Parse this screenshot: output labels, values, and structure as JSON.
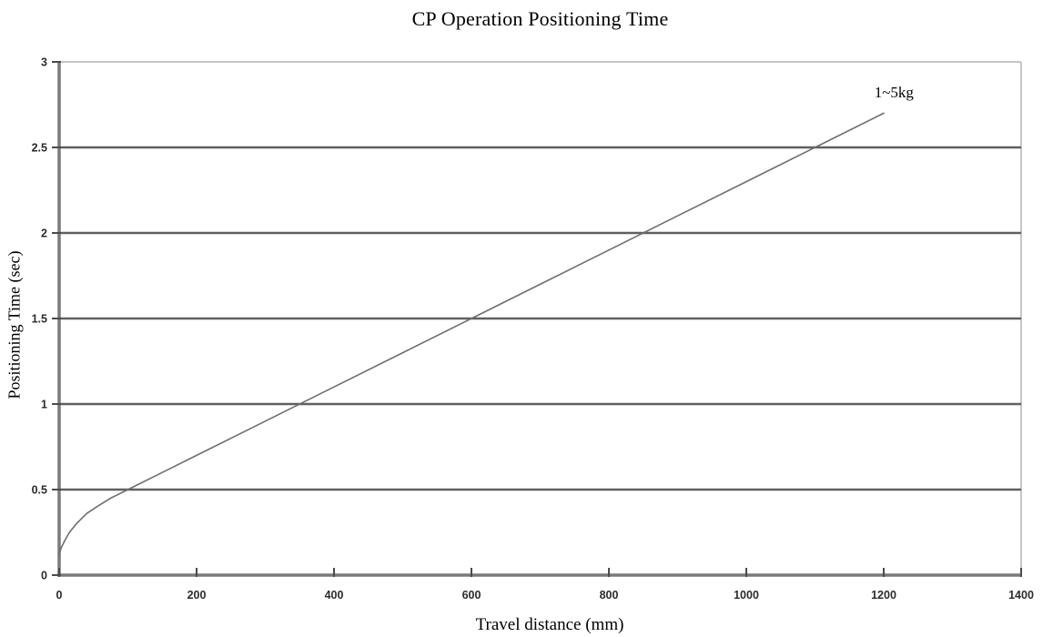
{
  "chart_data": {
    "type": "line",
    "title": "CP Operation Positioning Time",
    "xlabel": "Travel distance (mm)",
    "ylabel": "Positioning Time (sec)",
    "xlim": [
      0,
      1400
    ],
    "ylim": [
      0,
      3
    ],
    "x_ticks": [
      {
        "v": 0,
        "label": "0"
      },
      {
        "v": 200,
        "label": "200"
      },
      {
        "v": 400,
        "label": "400"
      },
      {
        "v": 600,
        "label": "600"
      },
      {
        "v": 800,
        "label": "800"
      },
      {
        "v": 1000,
        "label": "1000"
      },
      {
        "v": 1200,
        "label": "1200"
      },
      {
        "v": 1400,
        "label": "1400"
      }
    ],
    "y_ticks": [
      {
        "v": 0,
        "label": "0"
      },
      {
        "v": 0.5,
        "label": "0.5"
      },
      {
        "v": 1,
        "label": "1"
      },
      {
        "v": 1.5,
        "label": "1.5"
      },
      {
        "v": 2,
        "label": "2"
      },
      {
        "v": 2.5,
        "label": "2.5"
      },
      {
        "v": 3,
        "label": "3"
      }
    ],
    "grid": "horizontal-only",
    "legend_position": "inline-annotation",
    "series": [
      {
        "name": "1~5kg",
        "points": [
          [
            0,
            0.12
          ],
          [
            3,
            0.16
          ],
          [
            8,
            0.2
          ],
          [
            15,
            0.25
          ],
          [
            25,
            0.3
          ],
          [
            40,
            0.36
          ],
          [
            55,
            0.4
          ],
          [
            75,
            0.45
          ],
          [
            100,
            0.5
          ],
          [
            150,
            0.6
          ],
          [
            200,
            0.7
          ],
          [
            300,
            0.9
          ],
          [
            400,
            1.1
          ],
          [
            500,
            1.3
          ],
          [
            600,
            1.5
          ],
          [
            700,
            1.7
          ],
          [
            800,
            1.9
          ],
          [
            900,
            2.1
          ],
          [
            1000,
            2.3
          ],
          [
            1100,
            2.5
          ],
          [
            1200,
            2.7
          ]
        ],
        "annotation": {
          "text": "1~5kg",
          "x": 1215,
          "y": 2.82
        }
      }
    ],
    "colors": {
      "axis": "#7a7a7a",
      "grid": "#606060",
      "frame": "#c6c6c6",
      "line": "#6e6e6e",
      "tick_mark": "#4a4a4a",
      "tick_text": "#2b2b2b",
      "title_text": "#000000"
    }
  }
}
